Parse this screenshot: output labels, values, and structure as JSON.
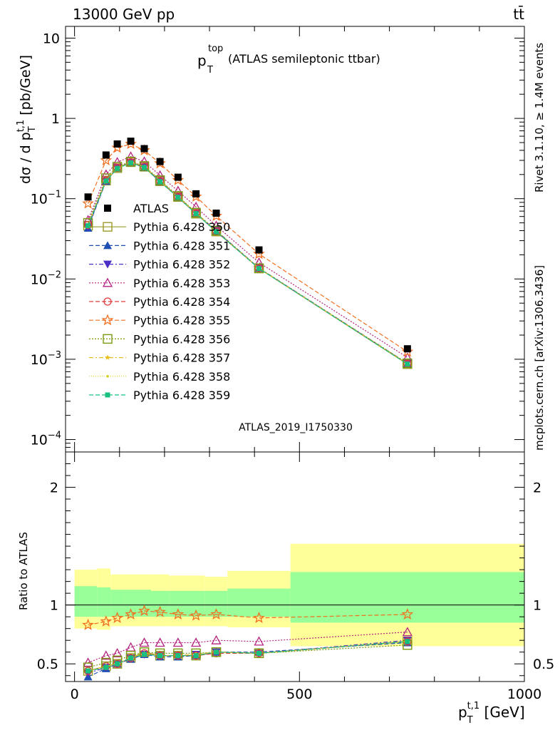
{
  "header": {
    "left_label": "13000 GeV pp",
    "right_label": "tt̄",
    "side_rivet": "Rivet 3.1.10, ≥ 1.4M events",
    "side_mcplots": "mcplots.cern.ch [arXiv:1306.3436]",
    "watermark": "ATLAS_2019_I1750330"
  },
  "chart_data": [
    {
      "type": "scatter",
      "panel": "main",
      "title_main": "p",
      "title_sub": "T",
      "title_sup": "top",
      "title_suffix": "(ATLAS semileptonic ttbar)",
      "ylabel": "dσ / d p_T^{t,1} [pb/GeV]",
      "ylabel_parts": {
        "main": "dσ / d p",
        "sub": "T",
        "sup": "t,1",
        "unit": " [pb/GeV]"
      },
      "yscale": "log",
      "ylim": [
        7e-05,
        14
      ],
      "xlim": [
        -20,
        1000
      ],
      "yticks": [
        {
          "value": 10,
          "base": "10",
          "exp": ""
        },
        {
          "value": 1,
          "base": "1",
          "exp": ""
        },
        {
          "value": 0.1,
          "base": "10",
          "exp": "−1"
        },
        {
          "value": 0.01,
          "base": "10",
          "exp": "−2"
        },
        {
          "value": 0.001,
          "base": "10",
          "exp": "−3"
        },
        {
          "value": 0.0001,
          "base": "10",
          "exp": "−4"
        }
      ],
      "legend_position": "middle-left",
      "x": [
        30,
        70,
        95,
        125,
        155,
        190,
        230,
        270,
        315,
        410,
        740
      ],
      "data": {
        "name": "ATLAS",
        "values": [
          0.105,
          0.35,
          0.48,
          0.52,
          0.42,
          0.29,
          0.185,
          0.115,
          0.066,
          0.023,
          0.00135
        ]
      },
      "series": [
        {
          "name": "Pythia 6.428 350",
          "color": "#9c9a27",
          "dash": "",
          "marker": "square-open",
          "values": [
            0.046,
            0.168,
            0.24,
            0.285,
            0.25,
            0.165,
            0.105,
            0.065,
            0.039,
            0.0135,
            0.00087
          ]
        },
        {
          "name": "Pythia 6.428 351",
          "color": "#1e4fb4",
          "dash": "6,3",
          "marker": "triangle-up",
          "values": [
            0.043,
            0.165,
            0.24,
            0.28,
            0.245,
            0.163,
            0.104,
            0.065,
            0.039,
            0.0136,
            0.00088
          ]
        },
        {
          "name": "Pythia 6.428 352",
          "color": "#4b2fc7",
          "dash": "6,3,2,3",
          "marker": "triangle-down",
          "values": [
            0.044,
            0.166,
            0.242,
            0.282,
            0.246,
            0.164,
            0.105,
            0.066,
            0.04,
            0.0137,
            0.00089
          ]
        },
        {
          "name": "Pythia 6.428 353",
          "color": "#b4237f",
          "dash": "2,2",
          "marker": "triangle-open",
          "values": [
            0.054,
            0.2,
            0.285,
            0.335,
            0.29,
            0.195,
            0.125,
            0.079,
            0.046,
            0.016,
            0.00105
          ]
        },
        {
          "name": "Pythia 6.428 354",
          "color": "#e23b3b",
          "dash": "6,3",
          "marker": "circle-open",
          "values": [
            0.047,
            0.17,
            0.243,
            0.284,
            0.25,
            0.166,
            0.106,
            0.066,
            0.039,
            0.0136,
            0.00088
          ]
        },
        {
          "name": "Pythia 6.428 355",
          "color": "#f07020",
          "dash": "6,3",
          "marker": "star-open",
          "values": [
            0.087,
            0.3,
            0.43,
            0.48,
            0.4,
            0.275,
            0.17,
            0.106,
            0.061,
            0.0205,
            0.00124
          ]
        },
        {
          "name": "Pythia 6.428 356",
          "color": "#7a9a10",
          "dash": "2,2",
          "marker": "square-open",
          "values": [
            0.05,
            0.18,
            0.25,
            0.29,
            0.255,
            0.17,
            0.108,
            0.067,
            0.04,
            0.0136,
            0.00089
          ]
        },
        {
          "name": "Pythia 6.428 357",
          "color": "#e8c020",
          "dash": "6,3,2,3",
          "marker": "star-small",
          "values": [
            0.046,
            0.168,
            0.24,
            0.282,
            0.247,
            0.164,
            0.105,
            0.066,
            0.039,
            0.0136,
            0.00088
          ]
        },
        {
          "name": "Pythia 6.428 358",
          "color": "#d8d020",
          "dash": "1,2",
          "marker": "dot",
          "values": [
            0.046,
            0.168,
            0.24,
            0.282,
            0.247,
            0.164,
            0.105,
            0.066,
            0.039,
            0.0136,
            0.00088
          ]
        },
        {
          "name": "Pythia 6.428 359",
          "color": "#18c080",
          "dash": "6,3",
          "marker": "square-filled",
          "values": [
            0.046,
            0.166,
            0.238,
            0.28,
            0.245,
            0.163,
            0.104,
            0.065,
            0.039,
            0.0135,
            0.00087
          ]
        }
      ]
    },
    {
      "type": "line",
      "panel": "ratio",
      "ylabel": "Ratio to ATLAS",
      "xlabel_parts": {
        "main": "p",
        "sub": "T",
        "sup": "t,1",
        "unit": " [GeV]"
      },
      "ylim": [
        0.35,
        2.3
      ],
      "xlim": [
        -20,
        1000
      ],
      "yticks": [
        0.5,
        1,
        2
      ],
      "xticks": [
        0,
        500,
        1000
      ],
      "reference_line": 1,
      "bin_edges": [
        0,
        50,
        80,
        110,
        140,
        170,
        210,
        250,
        290,
        340,
        480,
        1000
      ],
      "band_stat_syst": [
        [
          0.8,
          1.3
        ],
        [
          0.79,
          1.31
        ],
        [
          0.82,
          1.26
        ],
        [
          0.82,
          1.26
        ],
        [
          0.82,
          1.26
        ],
        [
          0.82,
          1.26
        ],
        [
          0.82,
          1.25
        ],
        [
          0.82,
          1.25
        ],
        [
          0.82,
          1.24
        ],
        [
          0.81,
          1.29
        ],
        [
          0.65,
          1.52
        ]
      ],
      "band_stat": [
        [
          0.9,
          1.16
        ],
        [
          0.9,
          1.15
        ],
        [
          0.9,
          1.13
        ],
        [
          0.9,
          1.13
        ],
        [
          0.9,
          1.13
        ],
        [
          0.9,
          1.12
        ],
        [
          0.9,
          1.12
        ],
        [
          0.9,
          1.12
        ],
        [
          0.9,
          1.12
        ],
        [
          0.9,
          1.14
        ],
        [
          0.85,
          1.28
        ]
      ],
      "x": [
        30,
        70,
        95,
        125,
        155,
        190,
        230,
        270,
        315,
        410,
        740
      ],
      "series": [
        {
          "name": "Pythia 6.428 350",
          "color": "#9c9a27",
          "dash": "",
          "marker": "square-open",
          "values": [
            0.44,
            0.48,
            0.5,
            0.55,
            0.6,
            0.57,
            0.57,
            0.57,
            0.6,
            0.59,
            0.69
          ]
        },
        {
          "name": "Pythia 6.428 351",
          "color": "#1e4fb4",
          "dash": "6,3",
          "marker": "triangle-up",
          "values": [
            0.39,
            0.46,
            0.5,
            0.54,
            0.58,
            0.56,
            0.56,
            0.57,
            0.6,
            0.6,
            0.68
          ]
        },
        {
          "name": "Pythia 6.428 352",
          "color": "#4b2fc7",
          "dash": "6,3,2,3",
          "marker": "triangle-down",
          "values": [
            0.42,
            0.47,
            0.5,
            0.55,
            0.58,
            0.57,
            0.57,
            0.58,
            0.6,
            0.59,
            0.7
          ]
        },
        {
          "name": "Pythia 6.428 353",
          "color": "#b4237f",
          "dash": "2,2",
          "marker": "triangle-open",
          "values": [
            0.51,
            0.57,
            0.59,
            0.64,
            0.68,
            0.68,
            0.68,
            0.68,
            0.7,
            0.69,
            0.77
          ]
        },
        {
          "name": "Pythia 6.428 354",
          "color": "#e23b3b",
          "dash": "6,3",
          "marker": "circle-open",
          "values": [
            0.44,
            0.48,
            0.5,
            0.55,
            0.59,
            0.57,
            0.57,
            0.57,
            0.59,
            0.59,
            0.69
          ]
        },
        {
          "name": "Pythia 6.428 355",
          "color": "#f07020",
          "dash": "6,3",
          "marker": "star-open",
          "values": [
            0.83,
            0.86,
            0.89,
            0.92,
            0.95,
            0.94,
            0.92,
            0.91,
            0.92,
            0.89,
            0.92
          ]
        },
        {
          "name": "Pythia 6.428 356",
          "color": "#7a9a10",
          "dash": "2,2",
          "marker": "square-open",
          "values": [
            0.47,
            0.51,
            0.53,
            0.57,
            0.6,
            0.59,
            0.59,
            0.59,
            0.6,
            0.59,
            0.66
          ]
        },
        {
          "name": "Pythia 6.428 357",
          "color": "#e8c020",
          "dash": "6,3,2,3",
          "marker": "star-small",
          "values": [
            0.44,
            0.48,
            0.5,
            0.55,
            0.59,
            0.57,
            0.57,
            0.58,
            0.6,
            0.59,
            0.69
          ]
        },
        {
          "name": "Pythia 6.428 358",
          "color": "#d8d020",
          "dash": "1,2",
          "marker": "dot",
          "values": [
            0.44,
            0.48,
            0.5,
            0.55,
            0.59,
            0.57,
            0.57,
            0.58,
            0.6,
            0.59,
            0.69
          ]
        },
        {
          "name": "Pythia 6.428 359",
          "color": "#18c080",
          "dash": "6,3",
          "marker": "square-filled",
          "values": [
            0.44,
            0.47,
            0.5,
            0.55,
            0.58,
            0.57,
            0.57,
            0.57,
            0.6,
            0.59,
            0.69
          ]
        }
      ]
    }
  ],
  "colors": {
    "band_stat_syst": "#ffff99",
    "band_stat": "#99ff99",
    "axis": "#000000",
    "side_text": "#777777"
  }
}
